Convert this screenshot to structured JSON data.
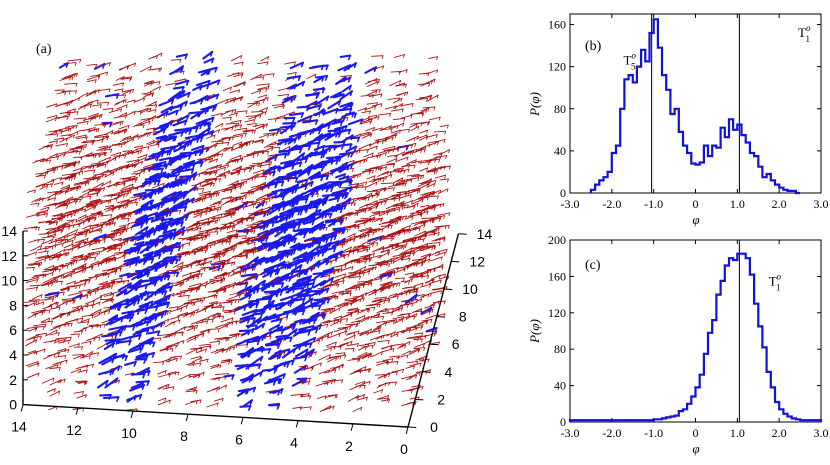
{
  "colors": {
    "background": "#ffffff",
    "axes": "#000000",
    "vline": "#222222",
    "hist": "#1111dd",
    "arrow_red": "#aa1111",
    "arrow_blue": "#1a1aee"
  },
  "chart_data": [
    {
      "id": "a",
      "type": "3d-vector-field",
      "panel_label": "(a)",
      "x_ticks": [
        "0",
        "2",
        "4",
        "6",
        "8",
        "10",
        "12",
        "14"
      ],
      "y_ticks": [
        "0",
        "2",
        "4",
        "6",
        "8",
        "10",
        "12",
        "14"
      ],
      "z_ticks": [
        "0",
        "2",
        "4",
        "6",
        "8",
        "10",
        "12",
        "14"
      ],
      "xlim": [
        0,
        14
      ],
      "ylim": [
        0,
        14
      ],
      "zlim": [
        0,
        14
      ],
      "grid": "16x16 sites per layer",
      "blue_bands_x_center": [
        10,
        5
      ],
      "series": [
        {
          "color_role": "arrow_red",
          "description": ""
        },
        {
          "color_role": "arrow_blue",
          "description": ""
        }
      ]
    },
    {
      "id": "b",
      "type": "step-histogram",
      "panel_label": "(b)",
      "xlabel": "φ",
      "ylabel": "P(φ)",
      "xlim": [
        -3.0,
        3.0
      ],
      "ylim": [
        0,
        170
      ],
      "x_ticks": [
        "-3.0",
        "-2.0",
        "-1.0",
        "0",
        "1.0",
        "2.0",
        "3.0"
      ],
      "y_ticks": [
        "0",
        "40",
        "80",
        "120",
        "160"
      ],
      "vlines": [
        -1.05,
        1.05
      ],
      "annotations": [
        {
          "label": "T",
          "sup": "o",
          "sub": "5",
          "x": -1.72,
          "y": 122
        },
        {
          "label": "T",
          "sup": "o",
          "sub": "1",
          "x": 2.45,
          "y": 148
        }
      ],
      "bin_edges": [
        -2.5,
        -2.4,
        -2.3,
        -2.2,
        -2.1,
        -2.0,
        -1.9,
        -1.8,
        -1.7,
        -1.6,
        -1.5,
        -1.4,
        -1.3,
        -1.2,
        -1.1,
        -1.0,
        -0.9,
        -0.8,
        -0.7,
        -0.6,
        -0.5,
        -0.4,
        -0.3,
        -0.2,
        -0.1,
        0.0,
        0.1,
        0.2,
        0.3,
        0.4,
        0.5,
        0.6,
        0.7,
        0.8,
        0.9,
        1.0,
        1.1,
        1.2,
        1.3,
        1.4,
        1.5,
        1.6,
        1.7,
        1.8,
        1.9,
        2.0,
        2.1,
        2.2,
        2.3,
        2.4,
        2.5
      ],
      "values": [
        3,
        8,
        12,
        15,
        20,
        38,
        45,
        80,
        108,
        112,
        105,
        120,
        136,
        125,
        152,
        165,
        138,
        112,
        98,
        75,
        80,
        58,
        45,
        38,
        28,
        27,
        29,
        45,
        35,
        45,
        43,
        62,
        53,
        70,
        60,
        65,
        55,
        48,
        38,
        35,
        25,
        15,
        18,
        12,
        8,
        5,
        3,
        2,
        2,
        0
      ]
    },
    {
      "id": "c",
      "type": "step-histogram",
      "panel_label": "(c)",
      "xlabel": "φ",
      "ylabel": "P(φ)",
      "xlim": [
        -3.0,
        3.0
      ],
      "ylim": [
        0,
        200
      ],
      "x_ticks": [
        "-3.0",
        "-2.0",
        "-1.0",
        "0",
        "1.0",
        "2.0",
        "3.0"
      ],
      "y_ticks": [
        "0",
        "40",
        "80",
        "120",
        "160",
        "200"
      ],
      "vlines": [
        1.05
      ],
      "annotations": [
        {
          "label": "T",
          "sup": "o",
          "sub": "1",
          "x": 1.75,
          "y": 150
        }
      ],
      "bin_edges": [
        -3.0,
        -2.5,
        -2.0,
        -1.5,
        -1.0,
        -0.9,
        -0.8,
        -0.7,
        -0.6,
        -0.5,
        -0.4,
        -0.3,
        -0.2,
        -0.1,
        0.0,
        0.1,
        0.2,
        0.3,
        0.4,
        0.5,
        0.6,
        0.7,
        0.8,
        0.9,
        1.0,
        1.1,
        1.2,
        1.3,
        1.4,
        1.5,
        1.6,
        1.7,
        1.8,
        1.9,
        2.0,
        2.1,
        2.2,
        2.3,
        2.4,
        2.5,
        2.6,
        2.7,
        2.8,
        2.9,
        3.0
      ],
      "values": [
        2,
        2,
        2,
        2,
        3,
        3,
        4,
        5,
        6,
        7,
        12,
        14,
        20,
        28,
        38,
        52,
        75,
        98,
        112,
        140,
        155,
        172,
        180,
        178,
        185,
        185,
        180,
        162,
        130,
        105,
        82,
        55,
        38,
        22,
        14,
        9,
        6,
        4,
        3,
        2,
        2,
        2,
        2,
        2
      ]
    }
  ]
}
